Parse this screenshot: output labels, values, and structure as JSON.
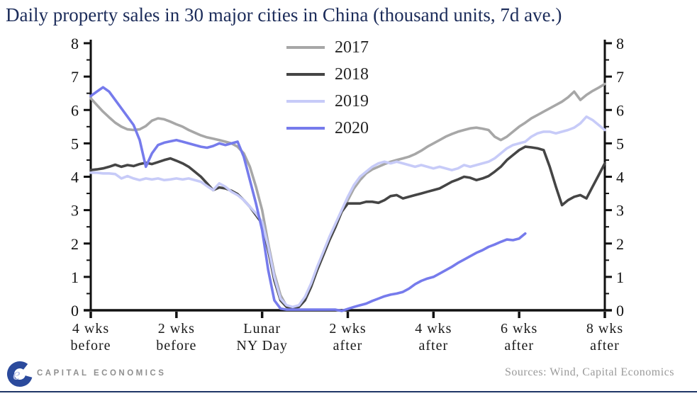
{
  "title": "Daily property sales in 30 major cities in China (thousand units, 7d ave.)",
  "legend": {
    "items": [
      {
        "label": "2017",
        "color": "#a7a7a7"
      },
      {
        "label": "2018",
        "color": "#454545"
      },
      {
        "label": "2019",
        "color": "#c7cbf8"
      },
      {
        "label": "2020",
        "color": "#767bec"
      }
    ]
  },
  "footer": {
    "logo_text": "CAPITAL ECONOMICS",
    "sources": "Sources:  Wind,  Capital  Economics"
  },
  "colors": {
    "title_navy": "#1c2c5a",
    "axis_black": "#111111",
    "bottom_rule_navy": "#1f3566"
  },
  "chart_data": {
    "type": "line",
    "title": "Daily property sales in 30 major cities in China (thousand units, 7d ave.)",
    "xlabel": "",
    "ylabel": "",
    "x_unit": "days relative to Lunar New Year's Day",
    "x_range": [
      -28,
      56
    ],
    "ylim": [
      0,
      8
    ],
    "y_ticks": [
      0,
      1,
      2,
      3,
      4,
      5,
      6,
      7,
      8
    ],
    "y_minor_step": 0.5,
    "grid": false,
    "legend_position": "top-center",
    "dual_y_axis": true,
    "x_tick_labels": [
      {
        "day": -28,
        "lines": [
          "4 wks",
          "before"
        ]
      },
      {
        "day": -14,
        "lines": [
          "2 wks",
          "before"
        ]
      },
      {
        "day": 0,
        "lines": [
          "Lunar",
          "NY Day"
        ]
      },
      {
        "day": 14,
        "lines": [
          "2 wks",
          "after"
        ]
      },
      {
        "day": 28,
        "lines": [
          "4 wks",
          "after"
        ]
      },
      {
        "day": 42,
        "lines": [
          "6 wks",
          "after"
        ]
      },
      {
        "day": 56,
        "lines": [
          "8 wks",
          "after"
        ]
      }
    ],
    "series": [
      {
        "name": "2017",
        "color": "#a7a7a7",
        "x_start": -28,
        "values": [
          6.35,
          6.15,
          5.95,
          5.78,
          5.62,
          5.5,
          5.42,
          5.4,
          5.42,
          5.52,
          5.68,
          5.75,
          5.72,
          5.65,
          5.57,
          5.5,
          5.4,
          5.32,
          5.24,
          5.18,
          5.14,
          5.1,
          5.05,
          5.0,
          4.9,
          4.7,
          4.3,
          3.7,
          3.0,
          2.0,
          1.1,
          0.45,
          0.12,
          0.07,
          0.1,
          0.35,
          0.75,
          1.25,
          1.7,
          2.15,
          2.55,
          2.95,
          3.3,
          3.65,
          3.9,
          4.1,
          4.22,
          4.3,
          4.38,
          4.45,
          4.5,
          4.55,
          4.6,
          4.68,
          4.78,
          4.9,
          5.0,
          5.1,
          5.2,
          5.28,
          5.35,
          5.4,
          5.45,
          5.47,
          5.44,
          5.4,
          5.2,
          5.1,
          5.2,
          5.35,
          5.5,
          5.62,
          5.75,
          5.85,
          5.95,
          6.05,
          6.15,
          6.25,
          6.38,
          6.55,
          6.3,
          6.45,
          6.57,
          6.67,
          6.78
        ]
      },
      {
        "name": "2018",
        "color": "#454545",
        "x_start": -28,
        "values": [
          4.2,
          4.22,
          4.25,
          4.3,
          4.36,
          4.3,
          4.35,
          4.32,
          4.38,
          4.42,
          4.38,
          4.44,
          4.5,
          4.55,
          4.48,
          4.4,
          4.3,
          4.15,
          4.0,
          3.8,
          3.6,
          3.68,
          3.65,
          3.58,
          3.48,
          3.3,
          3.1,
          2.85,
          2.6,
          1.8,
          0.9,
          0.3,
          0.1,
          0.06,
          0.1,
          0.3,
          0.7,
          1.2,
          1.65,
          2.1,
          2.5,
          2.95,
          3.2,
          3.2,
          3.2,
          3.25,
          3.25,
          3.22,
          3.3,
          3.42,
          3.45,
          3.35,
          3.4,
          3.45,
          3.5,
          3.55,
          3.6,
          3.65,
          3.75,
          3.85,
          3.92,
          4.0,
          3.97,
          3.9,
          3.95,
          4.02,
          4.15,
          4.3,
          4.5,
          4.65,
          4.8,
          4.9,
          4.88,
          4.85,
          4.8,
          4.3,
          3.7,
          3.15,
          3.3,
          3.4,
          3.45,
          3.35,
          3.7,
          4.05,
          4.4
        ]
      },
      {
        "name": "2019",
        "color": "#c7cbf8",
        "x_start": -28,
        "values": [
          4.12,
          4.12,
          4.1,
          4.1,
          4.08,
          3.95,
          4.02,
          3.95,
          3.9,
          3.95,
          3.92,
          3.95,
          3.9,
          3.92,
          3.95,
          3.92,
          3.95,
          3.9,
          3.85,
          3.72,
          3.6,
          3.8,
          3.7,
          3.55,
          3.45,
          3.3,
          3.1,
          2.9,
          2.65,
          1.9,
          1.0,
          0.35,
          0.15,
          0.1,
          0.15,
          0.4,
          0.8,
          1.3,
          1.75,
          2.2,
          2.6,
          3.0,
          3.4,
          3.75,
          4.0,
          4.15,
          4.3,
          4.4,
          4.45,
          4.4,
          4.45,
          4.4,
          4.35,
          4.3,
          4.35,
          4.3,
          4.25,
          4.3,
          4.25,
          4.2,
          4.25,
          4.35,
          4.3,
          4.35,
          4.4,
          4.45,
          4.55,
          4.7,
          4.85,
          4.95,
          5.0,
          5.05,
          5.2,
          5.3,
          5.35,
          5.35,
          5.3,
          5.35,
          5.4,
          5.47,
          5.6,
          5.8,
          5.7,
          5.55,
          5.4
        ]
      },
      {
        "name": "2020",
        "color": "#767bec",
        "x_start": -28,
        "values": [
          6.42,
          6.55,
          6.68,
          6.55,
          6.3,
          6.05,
          5.8,
          5.55,
          5.1,
          4.3,
          4.7,
          4.95,
          5.02,
          5.06,
          5.1,
          5.05,
          5.0,
          4.95,
          4.9,
          4.87,
          4.92,
          5.0,
          4.95,
          5.0,
          5.05,
          4.6,
          3.9,
          3.2,
          2.4,
          1.2,
          0.3,
          0.05,
          0.02,
          0.02,
          0.02,
          0.02,
          0.02,
          0.02,
          0.02,
          0.02,
          0.02,
          -0.02,
          0.04,
          0.1,
          0.15,
          0.2,
          0.28,
          0.35,
          0.42,
          0.47,
          0.5,
          0.55,
          0.65,
          0.78,
          0.88,
          0.95,
          1.0,
          1.1,
          1.2,
          1.3,
          1.42,
          1.52,
          1.62,
          1.72,
          1.8,
          1.9,
          1.97,
          2.05,
          2.12,
          2.1,
          2.15,
          2.3
        ]
      }
    ]
  }
}
